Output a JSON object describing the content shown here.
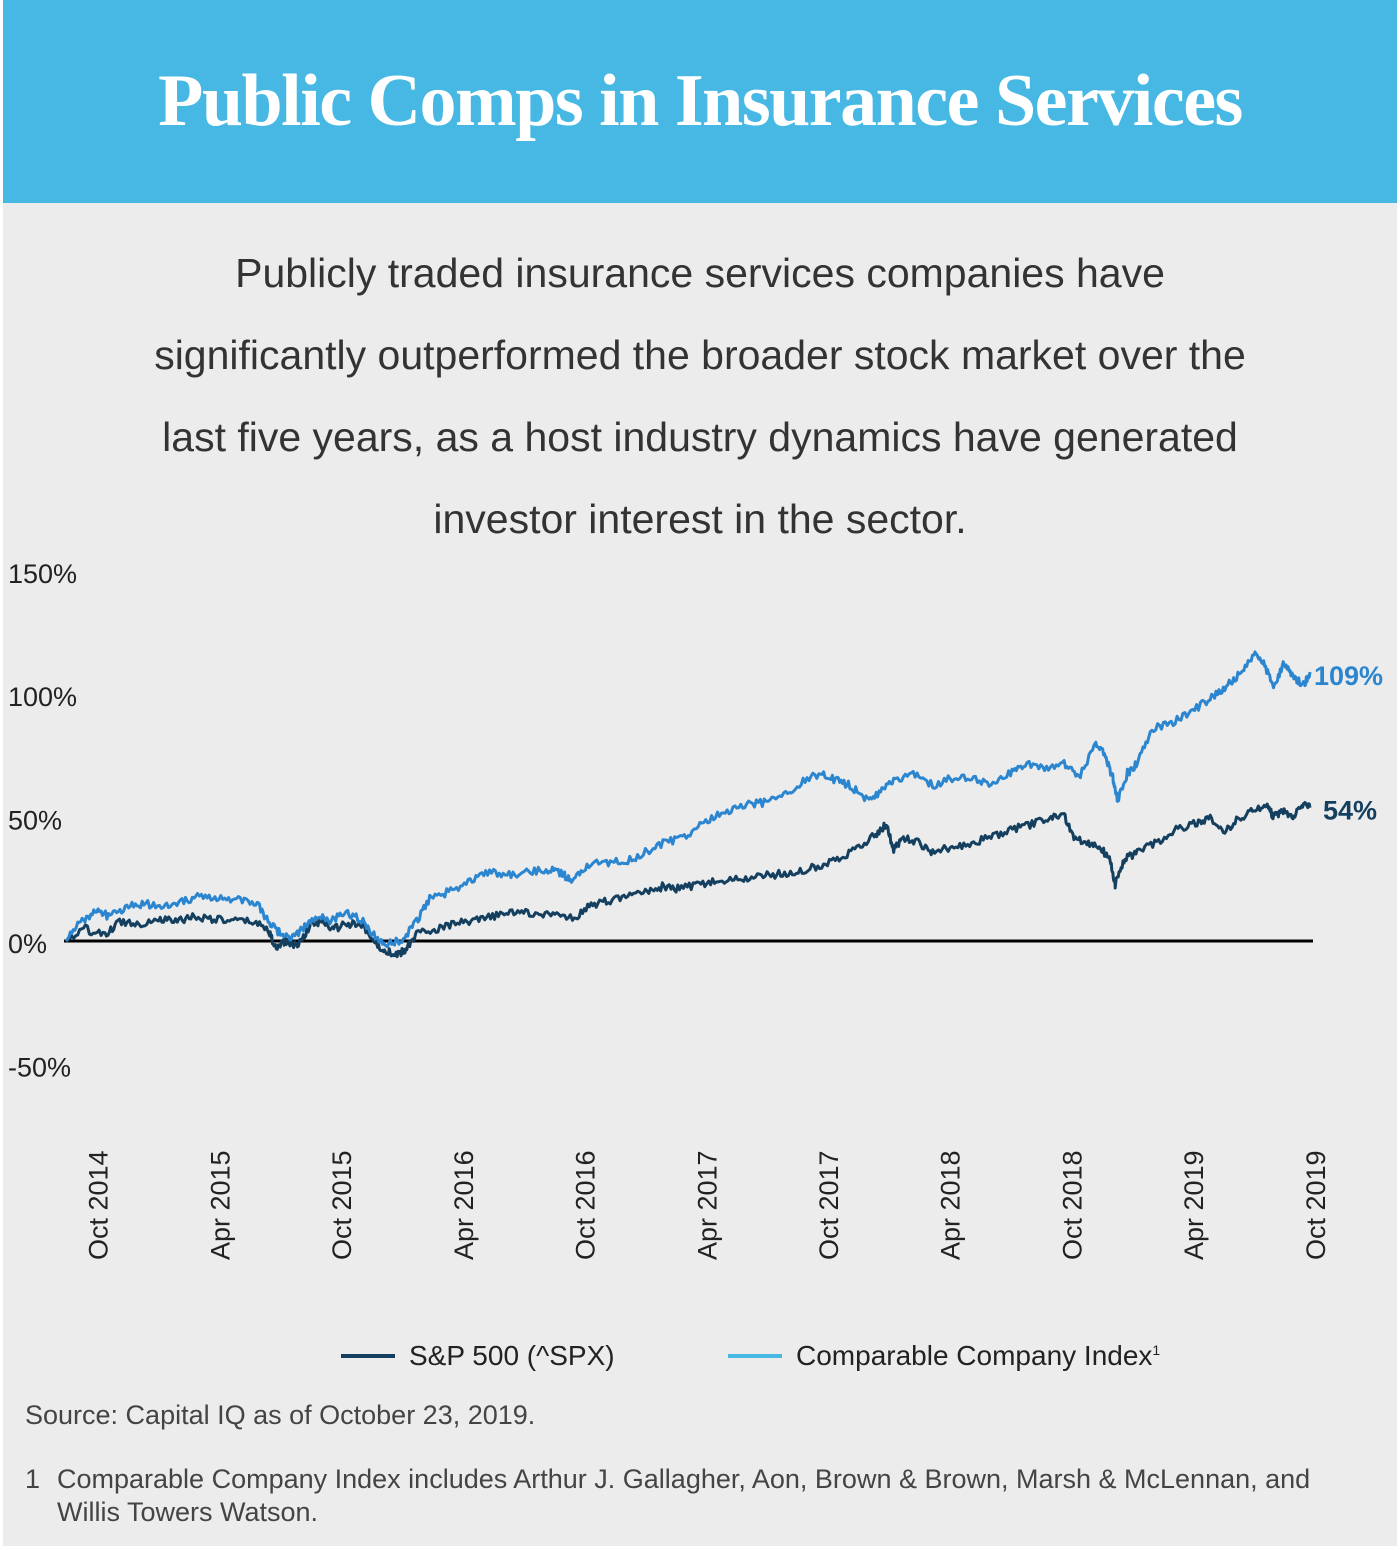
{
  "header": {
    "title": "Public Comps in Insurance Services"
  },
  "intro": {
    "lines": [
      "Publicly traded insurance services companies have",
      "significantly outperformed the broader stock market over the",
      "last five years, as a host industry dynamics have generated",
      "investor interest in the sector."
    ]
  },
  "chart_data": {
    "type": "line",
    "title": "",
    "xlabel": "",
    "ylabel": "",
    "ylim": [
      -50,
      150
    ],
    "yticks": [
      "150%",
      "100%",
      "50%",
      "0%",
      "-50%"
    ],
    "ytick_values": [
      150,
      100,
      50,
      0,
      -50
    ],
    "x_range": [
      2014.7,
      2019.81
    ],
    "xticks": [
      "Oct 2014",
      "Apr 2015",
      "Oct 2015",
      "Apr 2016",
      "Oct 2016",
      "Apr 2017",
      "Oct 2017",
      "Apr 2018",
      "Oct 2018",
      "Apr 2019",
      "Oct 2019"
    ],
    "xtick_values": [
      2014.83,
      2015.33,
      2015.83,
      2016.33,
      2016.83,
      2017.33,
      2017.83,
      2018.33,
      2018.83,
      2019.33,
      2019.83
    ],
    "zero_line": 0,
    "series": [
      {
        "name": "S&P 500 (^SPX)",
        "color": "#143f5e",
        "end_label": "54%",
        "points": [
          [
            2014.7,
            0
          ],
          [
            2014.78,
            5
          ],
          [
            2014.86,
            2
          ],
          [
            2014.92,
            8
          ],
          [
            2015.0,
            7
          ],
          [
            2015.08,
            9
          ],
          [
            2015.15,
            8
          ],
          [
            2015.22,
            10
          ],
          [
            2015.3,
            9
          ],
          [
            2015.38,
            8
          ],
          [
            2015.46,
            8
          ],
          [
            2015.53,
            5
          ],
          [
            2015.56,
            -3
          ],
          [
            2015.6,
            0
          ],
          [
            2015.65,
            -2
          ],
          [
            2015.7,
            6
          ],
          [
            2015.75,
            8
          ],
          [
            2015.8,
            5
          ],
          [
            2015.86,
            7
          ],
          [
            2015.92,
            6
          ],
          [
            2015.98,
            -2
          ],
          [
            2016.02,
            -4
          ],
          [
            2016.06,
            -6
          ],
          [
            2016.1,
            -3
          ],
          [
            2016.14,
            3
          ],
          [
            2016.22,
            5
          ],
          [
            2016.3,
            7
          ],
          [
            2016.38,
            8
          ],
          [
            2016.46,
            10
          ],
          [
            2016.54,
            12
          ],
          [
            2016.62,
            11
          ],
          [
            2016.7,
            11
          ],
          [
            2016.78,
            9
          ],
          [
            2016.85,
            14
          ],
          [
            2016.92,
            16
          ],
          [
            2017.0,
            18
          ],
          [
            2017.08,
            20
          ],
          [
            2017.15,
            22
          ],
          [
            2017.22,
            21
          ],
          [
            2017.3,
            23
          ],
          [
            2017.38,
            24
          ],
          [
            2017.46,
            25
          ],
          [
            2017.54,
            26
          ],
          [
            2017.62,
            27
          ],
          [
            2017.7,
            28
          ],
          [
            2017.78,
            30
          ],
          [
            2017.86,
            33
          ],
          [
            2017.94,
            37
          ],
          [
            2018.02,
            43
          ],
          [
            2018.07,
            47
          ],
          [
            2018.1,
            37
          ],
          [
            2018.14,
            42
          ],
          [
            2018.2,
            40
          ],
          [
            2018.26,
            36
          ],
          [
            2018.34,
            38
          ],
          [
            2018.42,
            40
          ],
          [
            2018.5,
            42
          ],
          [
            2018.58,
            45
          ],
          [
            2018.66,
            47
          ],
          [
            2018.74,
            50
          ],
          [
            2018.8,
            51
          ],
          [
            2018.84,
            42
          ],
          [
            2018.9,
            40
          ],
          [
            2018.95,
            38
          ],
          [
            2018.99,
            32
          ],
          [
            2019.01,
            23
          ],
          [
            2019.05,
            33
          ],
          [
            2019.1,
            36
          ],
          [
            2019.18,
            40
          ],
          [
            2019.26,
            45
          ],
          [
            2019.34,
            48
          ],
          [
            2019.4,
            50
          ],
          [
            2019.46,
            44
          ],
          [
            2019.52,
            50
          ],
          [
            2019.58,
            53
          ],
          [
            2019.64,
            55
          ],
          [
            2019.66,
            50
          ],
          [
            2019.7,
            53
          ],
          [
            2019.74,
            50
          ],
          [
            2019.78,
            55
          ],
          [
            2019.81,
            54
          ]
        ]
      },
      {
        "name": "Comparable Company Index",
        "color": "#2b86cf",
        "end_label": "109%",
        "points": [
          [
            2014.7,
            0
          ],
          [
            2014.76,
            8
          ],
          [
            2014.82,
            12
          ],
          [
            2014.88,
            10
          ],
          [
            2014.95,
            14
          ],
          [
            2015.02,
            15
          ],
          [
            2015.1,
            14
          ],
          [
            2015.17,
            16
          ],
          [
            2015.24,
            18
          ],
          [
            2015.32,
            17
          ],
          [
            2015.4,
            17
          ],
          [
            2015.48,
            16
          ],
          [
            2015.53,
            8
          ],
          [
            2015.58,
            3
          ],
          [
            2015.63,
            1
          ],
          [
            2015.68,
            6
          ],
          [
            2015.73,
            10
          ],
          [
            2015.79,
            8
          ],
          [
            2015.85,
            12
          ],
          [
            2015.92,
            8
          ],
          [
            2015.97,
            2
          ],
          [
            2016.02,
            -1
          ],
          [
            2016.08,
            0
          ],
          [
            2016.14,
            8
          ],
          [
            2016.2,
            18
          ],
          [
            2016.28,
            20
          ],
          [
            2016.36,
            24
          ],
          [
            2016.44,
            28
          ],
          [
            2016.52,
            27
          ],
          [
            2016.6,
            28
          ],
          [
            2016.68,
            29
          ],
          [
            2016.74,
            27
          ],
          [
            2016.78,
            24
          ],
          [
            2016.84,
            31
          ],
          [
            2016.92,
            32
          ],
          [
            2017.0,
            32
          ],
          [
            2017.08,
            36
          ],
          [
            2017.16,
            40
          ],
          [
            2017.24,
            42
          ],
          [
            2017.32,
            48
          ],
          [
            2017.4,
            52
          ],
          [
            2017.48,
            55
          ],
          [
            2017.56,
            56
          ],
          [
            2017.64,
            58
          ],
          [
            2017.72,
            64
          ],
          [
            2017.8,
            68
          ],
          [
            2017.86,
            65
          ],
          [
            2017.92,
            63
          ],
          [
            2017.98,
            58
          ],
          [
            2018.04,
            60
          ],
          [
            2018.1,
            65
          ],
          [
            2018.18,
            68
          ],
          [
            2018.26,
            63
          ],
          [
            2018.34,
            66
          ],
          [
            2018.42,
            66
          ],
          [
            2018.5,
            63
          ],
          [
            2018.58,
            68
          ],
          [
            2018.64,
            72
          ],
          [
            2018.72,
            70
          ],
          [
            2018.8,
            72
          ],
          [
            2018.86,
            66
          ],
          [
            2018.93,
            80
          ],
          [
            2018.97,
            75
          ],
          [
            2019.0,
            66
          ],
          [
            2019.02,
            57
          ],
          [
            2019.06,
            68
          ],
          [
            2019.1,
            72
          ],
          [
            2019.16,
            86
          ],
          [
            2019.24,
            88
          ],
          [
            2019.32,
            93
          ],
          [
            2019.4,
            98
          ],
          [
            2019.46,
            103
          ],
          [
            2019.52,
            108
          ],
          [
            2019.58,
            116
          ],
          [
            2019.62,
            112
          ],
          [
            2019.66,
            103
          ],
          [
            2019.7,
            112
          ],
          [
            2019.74,
            108
          ],
          [
            2019.78,
            103
          ],
          [
            2019.81,
            109
          ]
        ]
      }
    ],
    "legend": [
      {
        "label": "S&P 500 (^SPX)",
        "color": "#143f5e"
      },
      {
        "label": "Comparable Company Index",
        "sup": "1",
        "color": "#46b8e3"
      }
    ],
    "legend_position": "bottom"
  },
  "source": "Source: Capital IQ as of October 23, 2019.",
  "footnote": {
    "number": "1",
    "text": "Comparable Company Index includes Arthur J. Gallagher, Aon, Brown & Brown, Marsh & McLennan, and Willis Towers Watson."
  }
}
